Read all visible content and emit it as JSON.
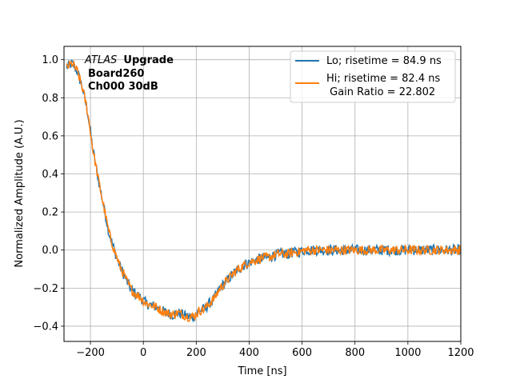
{
  "chart_data": {
    "type": "line",
    "title": "",
    "xlabel": "Time [ns]",
    "ylabel": "Normalized Amplitude (A.U.)",
    "xlim": [
      -300,
      1200
    ],
    "ylim": [
      -0.48,
      1.07
    ],
    "grid": true,
    "legend_position": "top-right",
    "xticks": [
      -200,
      0,
      200,
      400,
      600,
      800,
      1000,
      1200
    ],
    "xtick_labels": [
      "−200",
      "0",
      "200",
      "400",
      "600",
      "800",
      "1000",
      "1200"
    ],
    "yticks": [
      -0.4,
      -0.2,
      0.0,
      0.2,
      0.4,
      0.6,
      0.8,
      1.0
    ],
    "ytick_labels": [
      "−0.4",
      "−0.2",
      "0.0",
      "0.2",
      "0.4",
      "0.6",
      "0.8",
      "1.0"
    ],
    "annotation": {
      "italic": "ATLAS",
      "bold": "Upgrade",
      "line2": "Board260",
      "line3": "Ch000 30dB"
    },
    "gain_ratio_label": " Gain Ratio = 22.802",
    "series": [
      {
        "name": "Lo; risetime = 84.9 ns",
        "color": "#1f77b4",
        "x": [
          -290,
          -270,
          -250,
          -230,
          -210,
          -190,
          -170,
          -150,
          -130,
          -110,
          -90,
          -70,
          -50,
          -30,
          -10,
          10,
          30,
          50,
          70,
          90,
          110,
          130,
          150,
          170,
          190,
          210,
          230,
          250,
          270,
          290,
          310,
          330,
          350,
          370,
          390,
          410,
          430,
          450,
          470,
          490,
          510,
          530,
          550,
          570,
          590,
          610,
          630,
          650,
          670,
          690,
          710,
          730,
          750,
          770,
          790,
          810,
          830,
          850,
          870,
          890,
          910,
          930,
          950,
          970,
          990,
          1010,
          1030,
          1050,
          1070,
          1090,
          1110,
          1130,
          1150,
          1170,
          1190,
          1200
        ],
        "y": [
          0.96,
          0.98,
          0.94,
          0.85,
          0.72,
          0.52,
          0.37,
          0.23,
          0.09,
          0.0,
          -0.08,
          -0.14,
          -0.2,
          -0.23,
          -0.25,
          -0.28,
          -0.29,
          -0.3,
          -0.32,
          -0.33,
          -0.34,
          -0.33,
          -0.34,
          -0.35,
          -0.35,
          -0.32,
          -0.31,
          -0.28,
          -0.25,
          -0.2,
          -0.17,
          -0.14,
          -0.11,
          -0.09,
          -0.07,
          -0.06,
          -0.05,
          -0.04,
          -0.04,
          -0.03,
          -0.02,
          -0.02,
          -0.02,
          -0.01,
          -0.01,
          0.0,
          0.0,
          0.0,
          0.0,
          0.0,
          0.0,
          0.0,
          0.0,
          0.0,
          0.0,
          0.0,
          0.0,
          0.0,
          0.0,
          0.0,
          0.0,
          0.0,
          0.0,
          0.0,
          0.0,
          0.0,
          0.0,
          0.0,
          0.0,
          0.0,
          0.0,
          0.0,
          0.0,
          0.0,
          0.0,
          0.0
        ]
      },
      {
        "name": "Hi; risetime = 82.4 ns",
        "color": "#ff7f0e",
        "x": [
          -290,
          -270,
          -250,
          -230,
          -210,
          -190,
          -170,
          -150,
          -130,
          -110,
          -90,
          -70,
          -50,
          -30,
          -10,
          10,
          30,
          50,
          70,
          90,
          110,
          130,
          150,
          170,
          190,
          210,
          230,
          250,
          270,
          290,
          310,
          330,
          350,
          370,
          390,
          410,
          430,
          450,
          470,
          490,
          510,
          530,
          550,
          570,
          590,
          610,
          630,
          650,
          670,
          690,
          710,
          730,
          750,
          770,
          790,
          810,
          830,
          850,
          870,
          890,
          910,
          930,
          950,
          970,
          990,
          1010,
          1030,
          1050,
          1070,
          1090,
          1110,
          1130,
          1150,
          1170,
          1190,
          1200
        ],
        "y": [
          0.96,
          0.98,
          0.94,
          0.85,
          0.72,
          0.52,
          0.37,
          0.23,
          0.09,
          0.0,
          -0.08,
          -0.14,
          -0.2,
          -0.23,
          -0.25,
          -0.28,
          -0.29,
          -0.3,
          -0.32,
          -0.33,
          -0.34,
          -0.33,
          -0.34,
          -0.35,
          -0.35,
          -0.32,
          -0.31,
          -0.28,
          -0.25,
          -0.2,
          -0.17,
          -0.14,
          -0.11,
          -0.09,
          -0.07,
          -0.06,
          -0.05,
          -0.04,
          -0.04,
          -0.03,
          -0.02,
          -0.02,
          -0.02,
          -0.01,
          -0.01,
          0.0,
          0.0,
          0.0,
          0.0,
          0.0,
          0.0,
          0.0,
          0.0,
          0.0,
          0.0,
          0.0,
          0.0,
          0.0,
          0.0,
          0.0,
          0.0,
          0.0,
          0.0,
          0.0,
          0.0,
          0.0,
          0.0,
          0.0,
          0.0,
          0.0,
          0.0,
          0.0,
          0.0,
          0.0,
          0.0,
          0.0
        ]
      }
    ]
  }
}
